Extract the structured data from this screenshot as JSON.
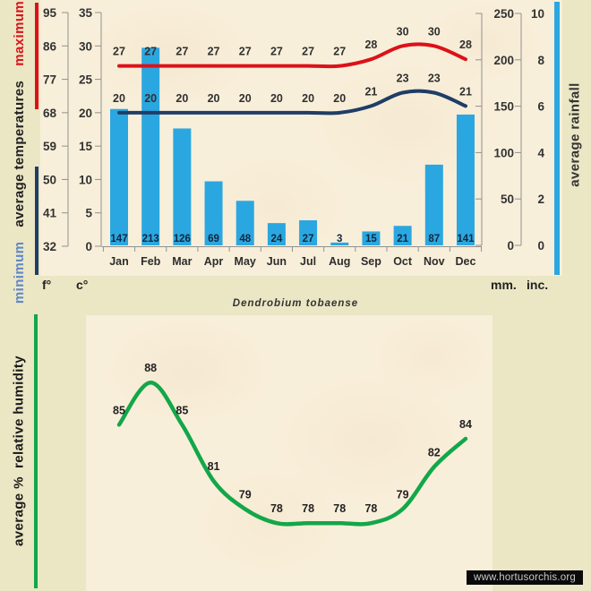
{
  "title": "Dendrobium tobaense",
  "watermark": "www.hortusorchis.org",
  "colors": {
    "background": "#ebe6c4",
    "panel": "#f8efda",
    "maximum_line": "#dc1118",
    "minimum_line": "#1f3d66",
    "rainfall_bar": "#2aa7e0",
    "humidity_line": "#12a74a",
    "minimum_word": "#5e88c8",
    "maximum_word": "#d8151c"
  },
  "chart_data": [
    {
      "type": "combo",
      "name": "average temperatures and rainfall by month",
      "categories": [
        "Jan",
        "Feb",
        "Mar",
        "Apr",
        "May",
        "Jun",
        "Jul",
        "Aug",
        "Sep",
        "Oct",
        "Nov",
        "Dec"
      ],
      "series": [
        {
          "name": "maximum temperature",
          "type": "line",
          "unit": "c°",
          "color": "#dc1118",
          "values": [
            27,
            27,
            27,
            27,
            27,
            27,
            27,
            27,
            28,
            30,
            30,
            28
          ]
        },
        {
          "name": "minimum temperature",
          "type": "line",
          "unit": "c°",
          "color": "#1f3d66",
          "values": [
            20,
            20,
            20,
            20,
            20,
            20,
            20,
            20,
            21,
            23,
            23,
            21
          ]
        },
        {
          "name": "average rainfall",
          "type": "bar",
          "unit": "mm",
          "color": "#2aa7e0",
          "values": [
            147,
            213,
            126,
            69,
            48,
            24,
            27,
            3,
            15,
            21,
            87,
            141
          ]
        }
      ],
      "axes": {
        "fahrenheit": {
          "label": "f°",
          "ticks": [
            95,
            86,
            77,
            68,
            59,
            50,
            41,
            32
          ],
          "range": [
            32,
            95
          ]
        },
        "celsius": {
          "label": "c°",
          "ticks": [
            35,
            30,
            25,
            20,
            15,
            10,
            5,
            0
          ],
          "range": [
            0,
            35
          ]
        },
        "mm": {
          "label": "mm.",
          "ticks": [
            250,
            200,
            150,
            100,
            50,
            0
          ],
          "range": [
            0,
            250
          ]
        },
        "inches": {
          "label": "inc.",
          "ticks": [
            10,
            8,
            6,
            4,
            2,
            0
          ],
          "range": [
            0,
            10
          ]
        }
      },
      "left_axis_words": {
        "minimum": "minimum",
        "middle": "average temperatures",
        "maximum": "maximum"
      },
      "right_axis_title": "average rainfall",
      "grid": false,
      "legend_position": "side-bars"
    },
    {
      "type": "line",
      "name": "average relative humidity by month",
      "categories": [
        "Jan",
        "Feb",
        "Mar",
        "Apr",
        "May",
        "Jun",
        "Jul",
        "Aug",
        "Sep",
        "Oct",
        "Nov",
        "Dec"
      ],
      "values": [
        85,
        88,
        85,
        81,
        79,
        78,
        78,
        78,
        78,
        79,
        82,
        84
      ],
      "color": "#12a74a",
      "axis_title": "average %  relative humidity",
      "unit": "%",
      "grid": false
    }
  ]
}
